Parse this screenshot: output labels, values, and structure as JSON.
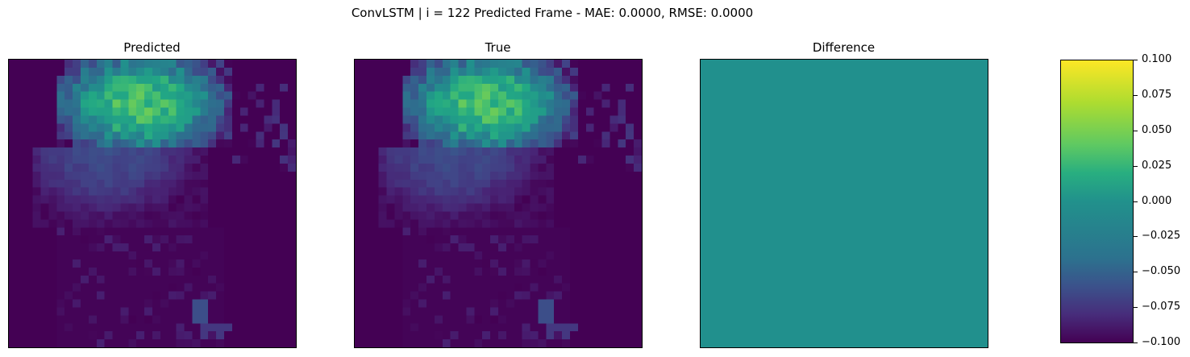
{
  "chart_data": {
    "title": "ConvLSTM | i = 122 Predicted Frame - MAE: 0.0000, RMSE: 0.0000",
    "type": "heatmap",
    "panels": [
      {
        "title": "Predicted",
        "field": "density_blob"
      },
      {
        "title": "True",
        "field": "density_blob"
      },
      {
        "title": "Difference",
        "field": "constant_zero"
      }
    ],
    "grid_size": [
      36,
      36
    ],
    "colormap": "viridis",
    "colorbar": {
      "range": [
        -0.1,
        0.1
      ],
      "ticks": [
        "0.100",
        "0.075",
        "0.050",
        "0.025",
        "0.000",
        "−0.025",
        "−0.050",
        "−0.075",
        "−0.100"
      ],
      "tick_values": [
        0.1,
        0.075,
        0.05,
        0.025,
        0.0,
        -0.025,
        -0.05,
        -0.075,
        -0.1
      ]
    },
    "difference_value": 0.0,
    "difference_color": "#21908d"
  }
}
